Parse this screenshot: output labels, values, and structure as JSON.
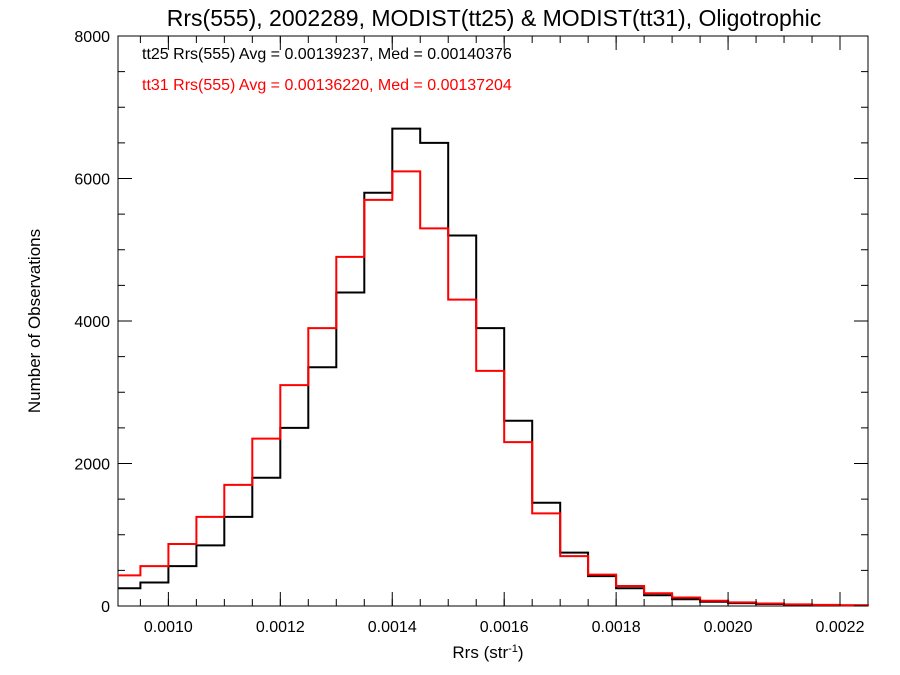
{
  "chart_data": {
    "type": "line",
    "title": "Rrs(555), 2002289, MODIST(tt25) & MODIST(tt31), Oligotrophic",
    "xlabel": "Rrs (str",
    "xlabel_sup": "-1",
    "xlabel_end": ")",
    "ylabel": "Number of Observations",
    "xlim": [
      0.00091,
      0.00225
    ],
    "ylim": [
      0,
      8000
    ],
    "x_ticks": [
      "0.0010",
      "0.0012",
      "0.0014",
      "0.0016",
      "0.0018",
      "0.0020",
      "0.0022"
    ],
    "y_ticks": [
      "0",
      "2000",
      "4000",
      "6000",
      "8000"
    ],
    "grid": false,
    "annotations": [
      {
        "text": "tt25 Rrs(555) Avg = 0.00139237, Med = 0.00140376",
        "color": "#000000"
      },
      {
        "text": "tt31 Rrs(555) Avg = 0.00136220, Med = 0.00137204",
        "color": "#ff0000"
      }
    ],
    "x": [
      0.00091,
      0.00095,
      0.001,
      0.00105,
      0.0011,
      0.00115,
      0.0012,
      0.00125,
      0.0013,
      0.00135,
      0.0014,
      0.00145,
      0.0015,
      0.00155,
      0.0016,
      0.00165,
      0.0017,
      0.00175,
      0.0018,
      0.00185,
      0.0019,
      0.00195,
      0.002,
      0.00205,
      0.0021,
      0.00215,
      0.0022,
      0.00225
    ],
    "series": [
      {
        "color": "#000000",
        "values": [
          250,
          330,
          560,
          850,
          1250,
          1800,
          2500,
          3350,
          4400,
          5800,
          6700,
          6500,
          5200,
          3900,
          2600,
          1450,
          750,
          420,
          250,
          150,
          95,
          60,
          40,
          28,
          18,
          12,
          8,
          5
        ]
      },
      {
        "color": "#ff0000",
        "values": [
          430,
          560,
          870,
          1250,
          1700,
          2350,
          3100,
          3900,
          4900,
          5700,
          6100,
          5300,
          4300,
          3300,
          2300,
          1300,
          700,
          440,
          280,
          180,
          120,
          75,
          50,
          35,
          22,
          15,
          10,
          6
        ]
      }
    ]
  }
}
